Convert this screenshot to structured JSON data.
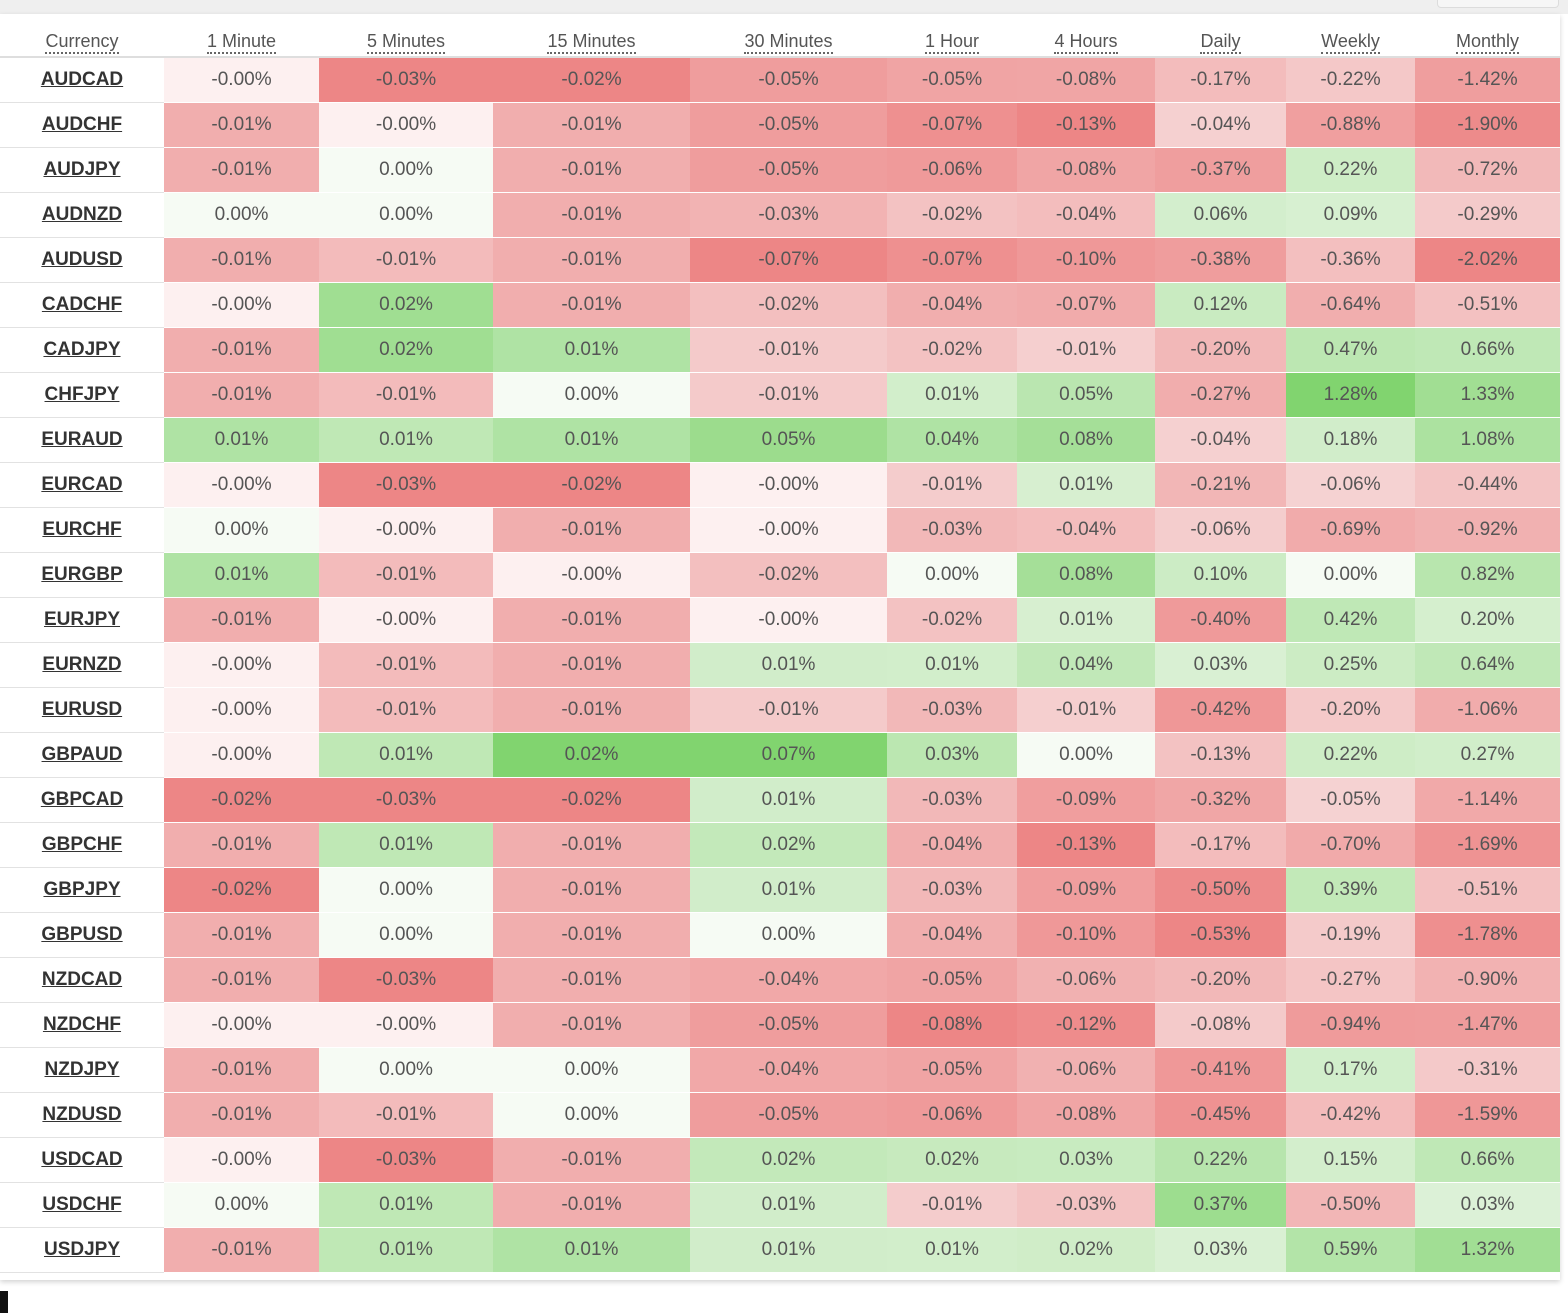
{
  "table": {
    "headers": [
      "Currency",
      "1 Minute",
      "5 Minutes",
      "15 Minutes",
      "30 Minutes",
      "1 Hour",
      "4 Hours",
      "Daily",
      "Weekly",
      "Monthly"
    ],
    "rows": [
      {
        "symbol": "AUDCAD",
        "values": [
          "-0.00%",
          "-0.03%",
          "-0.02%",
          "-0.05%",
          "-0.05%",
          "-0.08%",
          "-0.17%",
          "-0.22%",
          "-1.42%"
        ]
      },
      {
        "symbol": "AUDCHF",
        "values": [
          "-0.01%",
          "-0.00%",
          "-0.01%",
          "-0.05%",
          "-0.07%",
          "-0.13%",
          "-0.04%",
          "-0.88%",
          "-1.90%"
        ]
      },
      {
        "symbol": "AUDJPY",
        "values": [
          "-0.01%",
          "0.00%",
          "-0.01%",
          "-0.05%",
          "-0.06%",
          "-0.08%",
          "-0.37%",
          "0.22%",
          "-0.72%"
        ]
      },
      {
        "symbol": "AUDNZD",
        "values": [
          "0.00%",
          "0.00%",
          "-0.01%",
          "-0.03%",
          "-0.02%",
          "-0.04%",
          "0.06%",
          "0.09%",
          "-0.29%"
        ]
      },
      {
        "symbol": "AUDUSD",
        "values": [
          "-0.01%",
          "-0.01%",
          "-0.01%",
          "-0.07%",
          "-0.07%",
          "-0.10%",
          "-0.38%",
          "-0.36%",
          "-2.02%"
        ]
      },
      {
        "symbol": "CADCHF",
        "values": [
          "-0.00%",
          "0.02%",
          "-0.01%",
          "-0.02%",
          "-0.04%",
          "-0.07%",
          "0.12%",
          "-0.64%",
          "-0.51%"
        ]
      },
      {
        "symbol": "CADJPY",
        "values": [
          "-0.01%",
          "0.02%",
          "0.01%",
          "-0.01%",
          "-0.02%",
          "-0.01%",
          "-0.20%",
          "0.47%",
          "0.66%"
        ]
      },
      {
        "symbol": "CHFJPY",
        "values": [
          "-0.01%",
          "-0.01%",
          "0.00%",
          "-0.01%",
          "0.01%",
          "0.05%",
          "-0.27%",
          "1.28%",
          "1.33%"
        ]
      },
      {
        "symbol": "EURAUD",
        "values": [
          "0.01%",
          "0.01%",
          "0.01%",
          "0.05%",
          "0.04%",
          "0.08%",
          "-0.04%",
          "0.18%",
          "1.08%"
        ]
      },
      {
        "symbol": "EURCAD",
        "values": [
          "-0.00%",
          "-0.03%",
          "-0.02%",
          "-0.00%",
          "-0.01%",
          "0.01%",
          "-0.21%",
          "-0.06%",
          "-0.44%"
        ]
      },
      {
        "symbol": "EURCHF",
        "values": [
          "0.00%",
          "-0.00%",
          "-0.01%",
          "-0.00%",
          "-0.03%",
          "-0.04%",
          "-0.06%",
          "-0.69%",
          "-0.92%"
        ]
      },
      {
        "symbol": "EURGBP",
        "values": [
          "0.01%",
          "-0.01%",
          "-0.00%",
          "-0.02%",
          "0.00%",
          "0.08%",
          "0.10%",
          "0.00%",
          "0.82%"
        ]
      },
      {
        "symbol": "EURJPY",
        "values": [
          "-0.01%",
          "-0.00%",
          "-0.01%",
          "-0.00%",
          "-0.02%",
          "0.01%",
          "-0.40%",
          "0.42%",
          "0.20%"
        ]
      },
      {
        "symbol": "EURNZD",
        "values": [
          "-0.00%",
          "-0.01%",
          "-0.01%",
          "0.01%",
          "0.01%",
          "0.04%",
          "0.03%",
          "0.25%",
          "0.64%"
        ]
      },
      {
        "symbol": "EURUSD",
        "values": [
          "-0.00%",
          "-0.01%",
          "-0.01%",
          "-0.01%",
          "-0.03%",
          "-0.01%",
          "-0.42%",
          "-0.20%",
          "-1.06%"
        ]
      },
      {
        "symbol": "GBPAUD",
        "values": [
          "-0.00%",
          "0.01%",
          "0.02%",
          "0.07%",
          "0.03%",
          "0.00%",
          "-0.13%",
          "0.22%",
          "0.27%"
        ]
      },
      {
        "symbol": "GBPCAD",
        "values": [
          "-0.02%",
          "-0.03%",
          "-0.02%",
          "0.01%",
          "-0.03%",
          "-0.09%",
          "-0.32%",
          "-0.05%",
          "-1.14%"
        ]
      },
      {
        "symbol": "GBPCHF",
        "values": [
          "-0.01%",
          "0.01%",
          "-0.01%",
          "0.02%",
          "-0.04%",
          "-0.13%",
          "-0.17%",
          "-0.70%",
          "-1.69%"
        ]
      },
      {
        "symbol": "GBPJPY",
        "values": [
          "-0.02%",
          "0.00%",
          "-0.01%",
          "0.01%",
          "-0.03%",
          "-0.09%",
          "-0.50%",
          "0.39%",
          "-0.51%"
        ]
      },
      {
        "symbol": "GBPUSD",
        "values": [
          "-0.01%",
          "0.00%",
          "-0.01%",
          "0.00%",
          "-0.04%",
          "-0.10%",
          "-0.53%",
          "-0.19%",
          "-1.78%"
        ]
      },
      {
        "symbol": "NZDCAD",
        "values": [
          "-0.01%",
          "-0.03%",
          "-0.01%",
          "-0.04%",
          "-0.05%",
          "-0.06%",
          "-0.20%",
          "-0.27%",
          "-0.90%"
        ]
      },
      {
        "symbol": "NZDCHF",
        "values": [
          "-0.00%",
          "-0.00%",
          "-0.01%",
          "-0.05%",
          "-0.08%",
          "-0.12%",
          "-0.08%",
          "-0.94%",
          "-1.47%"
        ]
      },
      {
        "symbol": "NZDJPY",
        "values": [
          "-0.01%",
          "0.00%",
          "0.00%",
          "-0.04%",
          "-0.05%",
          "-0.06%",
          "-0.41%",
          "0.17%",
          "-0.31%"
        ]
      },
      {
        "symbol": "NZDUSD",
        "values": [
          "-0.01%",
          "-0.01%",
          "0.00%",
          "-0.05%",
          "-0.06%",
          "-0.08%",
          "-0.45%",
          "-0.42%",
          "-1.59%"
        ]
      },
      {
        "symbol": "USDCAD",
        "values": [
          "-0.00%",
          "-0.03%",
          "-0.01%",
          "0.02%",
          "0.02%",
          "0.03%",
          "0.22%",
          "0.15%",
          "0.66%"
        ]
      },
      {
        "symbol": "USDCHF",
        "values": [
          "0.00%",
          "0.01%",
          "-0.01%",
          "0.01%",
          "-0.01%",
          "-0.03%",
          "0.37%",
          "-0.50%",
          "0.03%"
        ]
      },
      {
        "symbol": "USDJPY",
        "values": [
          "-0.01%",
          "0.01%",
          "0.01%",
          "0.01%",
          "0.01%",
          "0.02%",
          "0.03%",
          "0.59%",
          "1.32%"
        ]
      }
    ]
  },
  "colors": {
    "red_base": "#f8f0f0",
    "red_max": "#ed8686",
    "green_base": "#f5f9f3",
    "green_max": "#81d46f",
    "neutral_negative_zero": "#fdf0f0",
    "neutral_positive_zero": "#f6fbf4"
  }
}
